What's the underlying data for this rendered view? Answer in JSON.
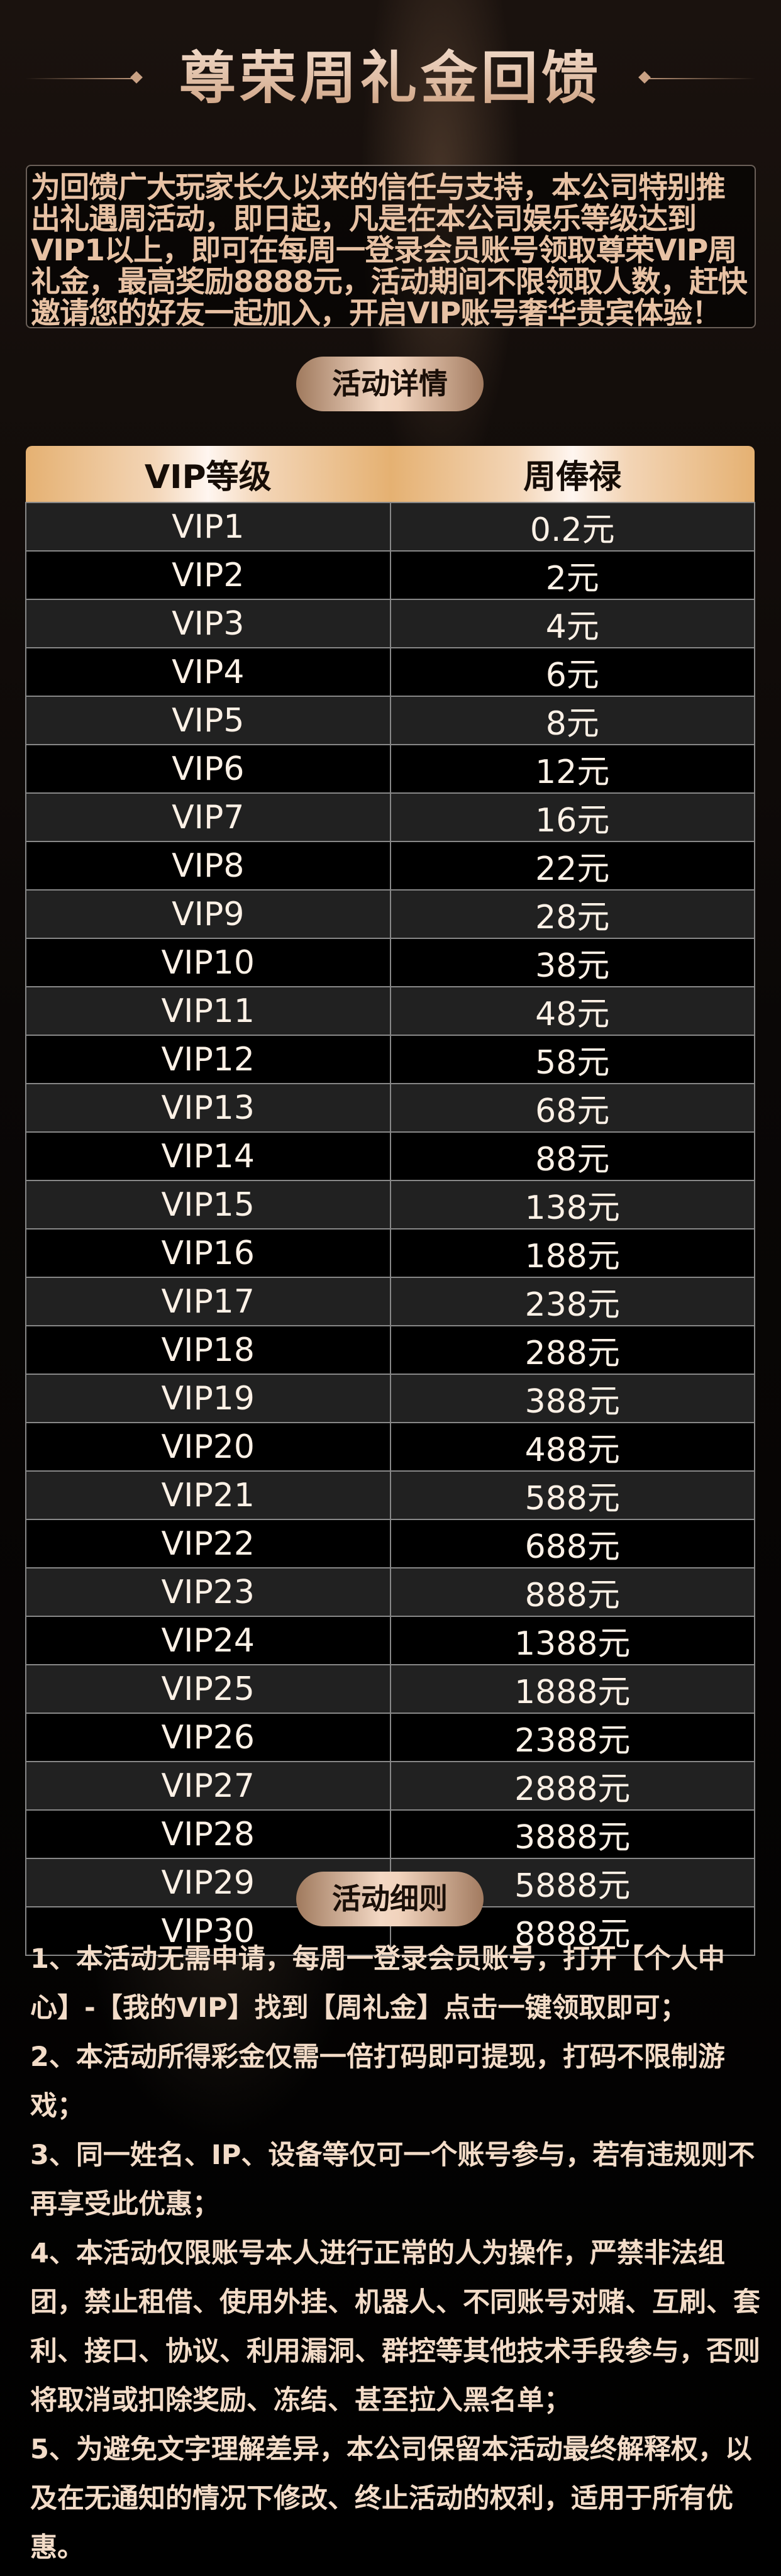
{
  "title": "尊荣周礼金回馈",
  "intro": "为回馈广大玩家长久以来的信任与支持，本公司特别推出礼遇周活动，即日起，凡是在本公司娱乐等级达到VIP1以上，即可在每周一登录会员账号领取尊荣VIP周礼金，最高奖励8888元，活动期间不限领取人数，赶快邀请您的好友一起加入，开启VIP账号奢华贵宾体验！",
  "details_label": "活动详情",
  "table": {
    "headers": [
      "VIP等级",
      "周俸禄"
    ],
    "rows": [
      [
        "VIP1",
        "0.2元"
      ],
      [
        "VIP2",
        "2元"
      ],
      [
        "VIP3",
        "4元"
      ],
      [
        "VIP4",
        "6元"
      ],
      [
        "VIP5",
        "8元"
      ],
      [
        "VIP6",
        "12元"
      ],
      [
        "VIP7",
        "16元"
      ],
      [
        "VIP8",
        "22元"
      ],
      [
        "VIP9",
        "28元"
      ],
      [
        "VIP10",
        "38元"
      ],
      [
        "VIP11",
        "48元"
      ],
      [
        "VIP12",
        "58元"
      ],
      [
        "VIP13",
        "68元"
      ],
      [
        "VIP14",
        "88元"
      ],
      [
        "VIP15",
        "138元"
      ],
      [
        "VIP16",
        "188元"
      ],
      [
        "VIP17",
        "238元"
      ],
      [
        "VIP18",
        "288元"
      ],
      [
        "VIP19",
        "388元"
      ],
      [
        "VIP20",
        "488元"
      ],
      [
        "VIP21",
        "588元"
      ],
      [
        "VIP22",
        "688元"
      ],
      [
        "VIP23",
        "888元"
      ],
      [
        "VIP24",
        "1388元"
      ],
      [
        "VIP25",
        "1888元"
      ],
      [
        "VIP26",
        "2388元"
      ],
      [
        "VIP27",
        "2888元"
      ],
      [
        "VIP28",
        "3888元"
      ],
      [
        "VIP29",
        "5888元"
      ],
      [
        "VIP30",
        "8888元"
      ]
    ]
  },
  "rules_label": "活动细则",
  "rules": [
    "1、本活动无需申请，每周一登录会员账号，打开【个人中心】-【我的VIP】找到【周礼金】点击一键领取即可；",
    "2、本活动所得彩金仅需一倍打码即可提现，打码不限制游戏；",
    "3、同一姓名、IP、设备等仅可一个账号参与，若有违规则不再享受此优惠；",
    "4、本活动仅限账号本人进行正常的人为操作，严禁非法组团，禁止租借、使用外挂、机器人、不同账号对赌、互刷、套利、接口、协议、利用漏洞、群控等其他技术手段参与，否则将取消或扣除奖励、冻结、甚至拉入黑名单；",
    "5、为避免文字理解差异，本公司保留本活动最终解释权，以及在无通知的情况下修改、终止活动的权利，适用于所有优惠。"
  ],
  "colors": {
    "gold": "#e5b172",
    "text": "#fdf1e6",
    "intro_text": "#e8c2a4"
  }
}
